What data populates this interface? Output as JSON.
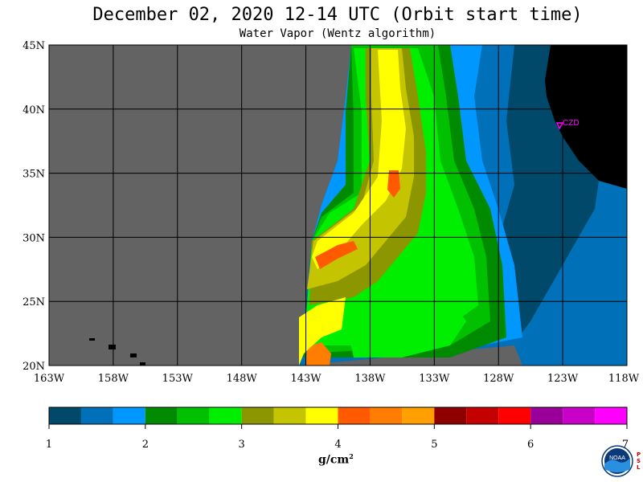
{
  "header": {
    "title": "December 02, 2020  12-14 UTC  (Orbit start time)",
    "subtitle": "Water Vapor (Wentz algorithm)"
  },
  "map": {
    "lat_labels": [
      "45N",
      "40N",
      "35N",
      "30N",
      "25N",
      "20N"
    ],
    "lon_labels": [
      "163W",
      "158W",
      "153W",
      "148W",
      "143W",
      "138W",
      "133W",
      "128W",
      "123W",
      "118W"
    ],
    "lat_range": [
      20,
      45
    ],
    "lon_range": [
      -163,
      -118
    ],
    "station_label": "CZD",
    "colors": {
      "no_data": "#636363",
      "land": "#000000",
      "grid": "#000000",
      "station": "#ff00ff"
    }
  },
  "colorbar": {
    "tick_labels": [
      "1",
      "2",
      "3",
      "4",
      "5",
      "6",
      "7"
    ],
    "units": "g/cm",
    "units_exp": "2",
    "colors": [
      "#00496b",
      "#0071b9",
      "#0097fe",
      "#008a00",
      "#00c000",
      "#00ee00",
      "#8c9600",
      "#c4c400",
      "#ffff00",
      "#ff5a00",
      "#ff7d00",
      "#ff9f00",
      "#8e0000",
      "#c40000",
      "#ff0000",
      "#990099",
      "#c800c8",
      "#ff00ff"
    ]
  },
  "logo": {
    "text": "NOAA",
    "side_text": "PSL"
  }
}
